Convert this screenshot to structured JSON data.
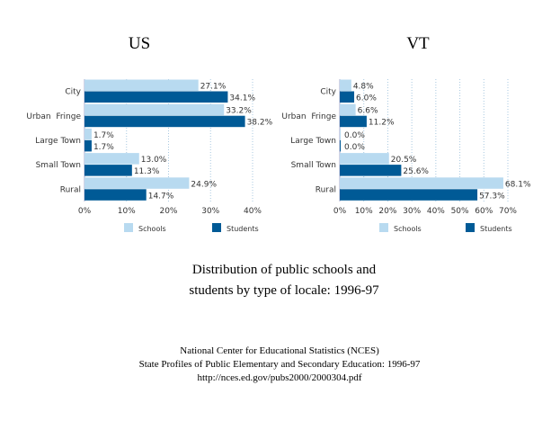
{
  "colors": {
    "schools": "#b8daf0",
    "students": "#005a96",
    "grid": "#a8c8e0"
  },
  "chart_data": [
    {
      "type": "bar",
      "orientation": "horizontal",
      "title": "US",
      "categories": [
        "City",
        "Urban  Fringe",
        "Large Town",
        "Small Town",
        "Rural"
      ],
      "series": [
        {
          "name": "Schools",
          "values": [
            27.1,
            33.2,
            1.7,
            13.0,
            24.9
          ]
        },
        {
          "name": "Students",
          "values": [
            34.1,
            38.2,
            1.7,
            11.3,
            14.7
          ]
        }
      ],
      "data_labels": {
        "Schools": [
          "27.1%",
          "33.2%",
          "1.7%",
          "13.0%",
          "24.9%"
        ],
        "Students": [
          "34.1%",
          "38.2%",
          "1.7%",
          "11.3%",
          "14.7%"
        ]
      },
      "xlim": [
        0,
        40
      ],
      "xticks": [
        "0%",
        "10%",
        "20%",
        "30%",
        "40%"
      ],
      "grid": true,
      "legend": "bottom"
    },
    {
      "type": "bar",
      "orientation": "horizontal",
      "title": "VT",
      "categories": [
        "City",
        "Urban  Fringe",
        "Large Town",
        "Small Town",
        "Rural"
      ],
      "series": [
        {
          "name": "Schools",
          "values": [
            4.8,
            6.6,
            0.0,
            20.5,
            68.1
          ]
        },
        {
          "name": "Students",
          "values": [
            6.0,
            11.2,
            0.0,
            25.6,
            57.3
          ]
        }
      ],
      "data_labels": {
        "Schools": [
          "4.8%",
          "6.6%",
          "0.0%",
          "20.5%",
          "68.1%"
        ],
        "Students": [
          "6.0%",
          "11.2%",
          "0.0%",
          "25.6%",
          "57.3%"
        ]
      },
      "xlim": [
        0,
        70
      ],
      "xticks": [
        "0%",
        "10%",
        "20%",
        "30%",
        "40%",
        "50%",
        "60%",
        "70%"
      ],
      "grid": true,
      "legend": "bottom"
    }
  ],
  "caption": {
    "line1": "Distribution of public schools and",
    "line2": "students by type of locale:  1996-97"
  },
  "source": {
    "line1": "National Center for Educational Statistics (NCES)",
    "line2": "State Profiles of Public Elementary and Secondary Education: 1996-97",
    "line3": "http://nces.ed.gov/pubs2000/2000304.pdf"
  }
}
